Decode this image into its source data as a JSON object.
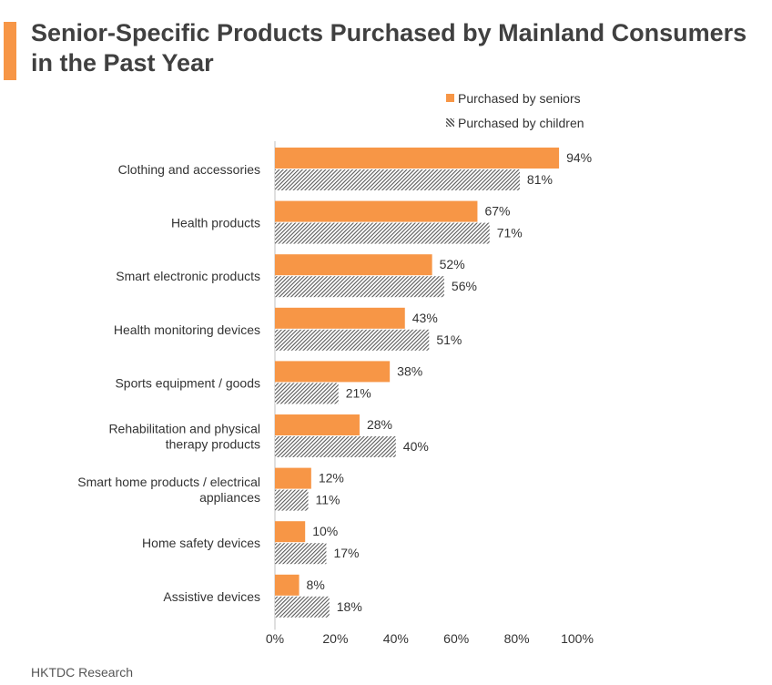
{
  "colors": {
    "accent": "#f79646",
    "seniors": "#f79646",
    "children_hatch": "#595959"
  },
  "chart_data": {
    "type": "bar",
    "orientation": "horizontal",
    "title": "Senior-Specific Products Purchased by Mainland Consumers in the Past Year",
    "categories": [
      [
        "Clothing and accessories"
      ],
      [
        "Health products"
      ],
      [
        "Smart electronic products"
      ],
      [
        "Health monitoring devices"
      ],
      [
        "Sports equipment / goods"
      ],
      [
        "Rehabilitation and physical",
        "therapy products"
      ],
      [
        "Smart home products / electrical",
        "appliances"
      ],
      [
        "Home safety devices"
      ],
      [
        "Assistive devices"
      ]
    ],
    "series": [
      {
        "name": "Purchased by seniors",
        "values": [
          94,
          67,
          52,
          43,
          38,
          28,
          12,
          10,
          8
        ],
        "labels": [
          "94%",
          "67%",
          "52%",
          "43%",
          "38%",
          "28%",
          "12%",
          "10%",
          "8%"
        ]
      },
      {
        "name": "Purchased by children",
        "values": [
          81,
          71,
          56,
          51,
          21,
          40,
          11,
          17,
          18
        ],
        "labels": [
          "81%",
          "71%",
          "56%",
          "51%",
          "21%",
          "40%",
          "11%",
          "17%",
          "18%"
        ]
      }
    ],
    "xlim": [
      0,
      100
    ],
    "xticks": [
      0,
      20,
      40,
      60,
      80,
      100
    ],
    "xtick_labels": [
      "0%",
      "20%",
      "40%",
      "60%",
      "80%",
      "100%"
    ],
    "grid": false,
    "legend_position": "top-right"
  },
  "source": "HKTDC Research"
}
